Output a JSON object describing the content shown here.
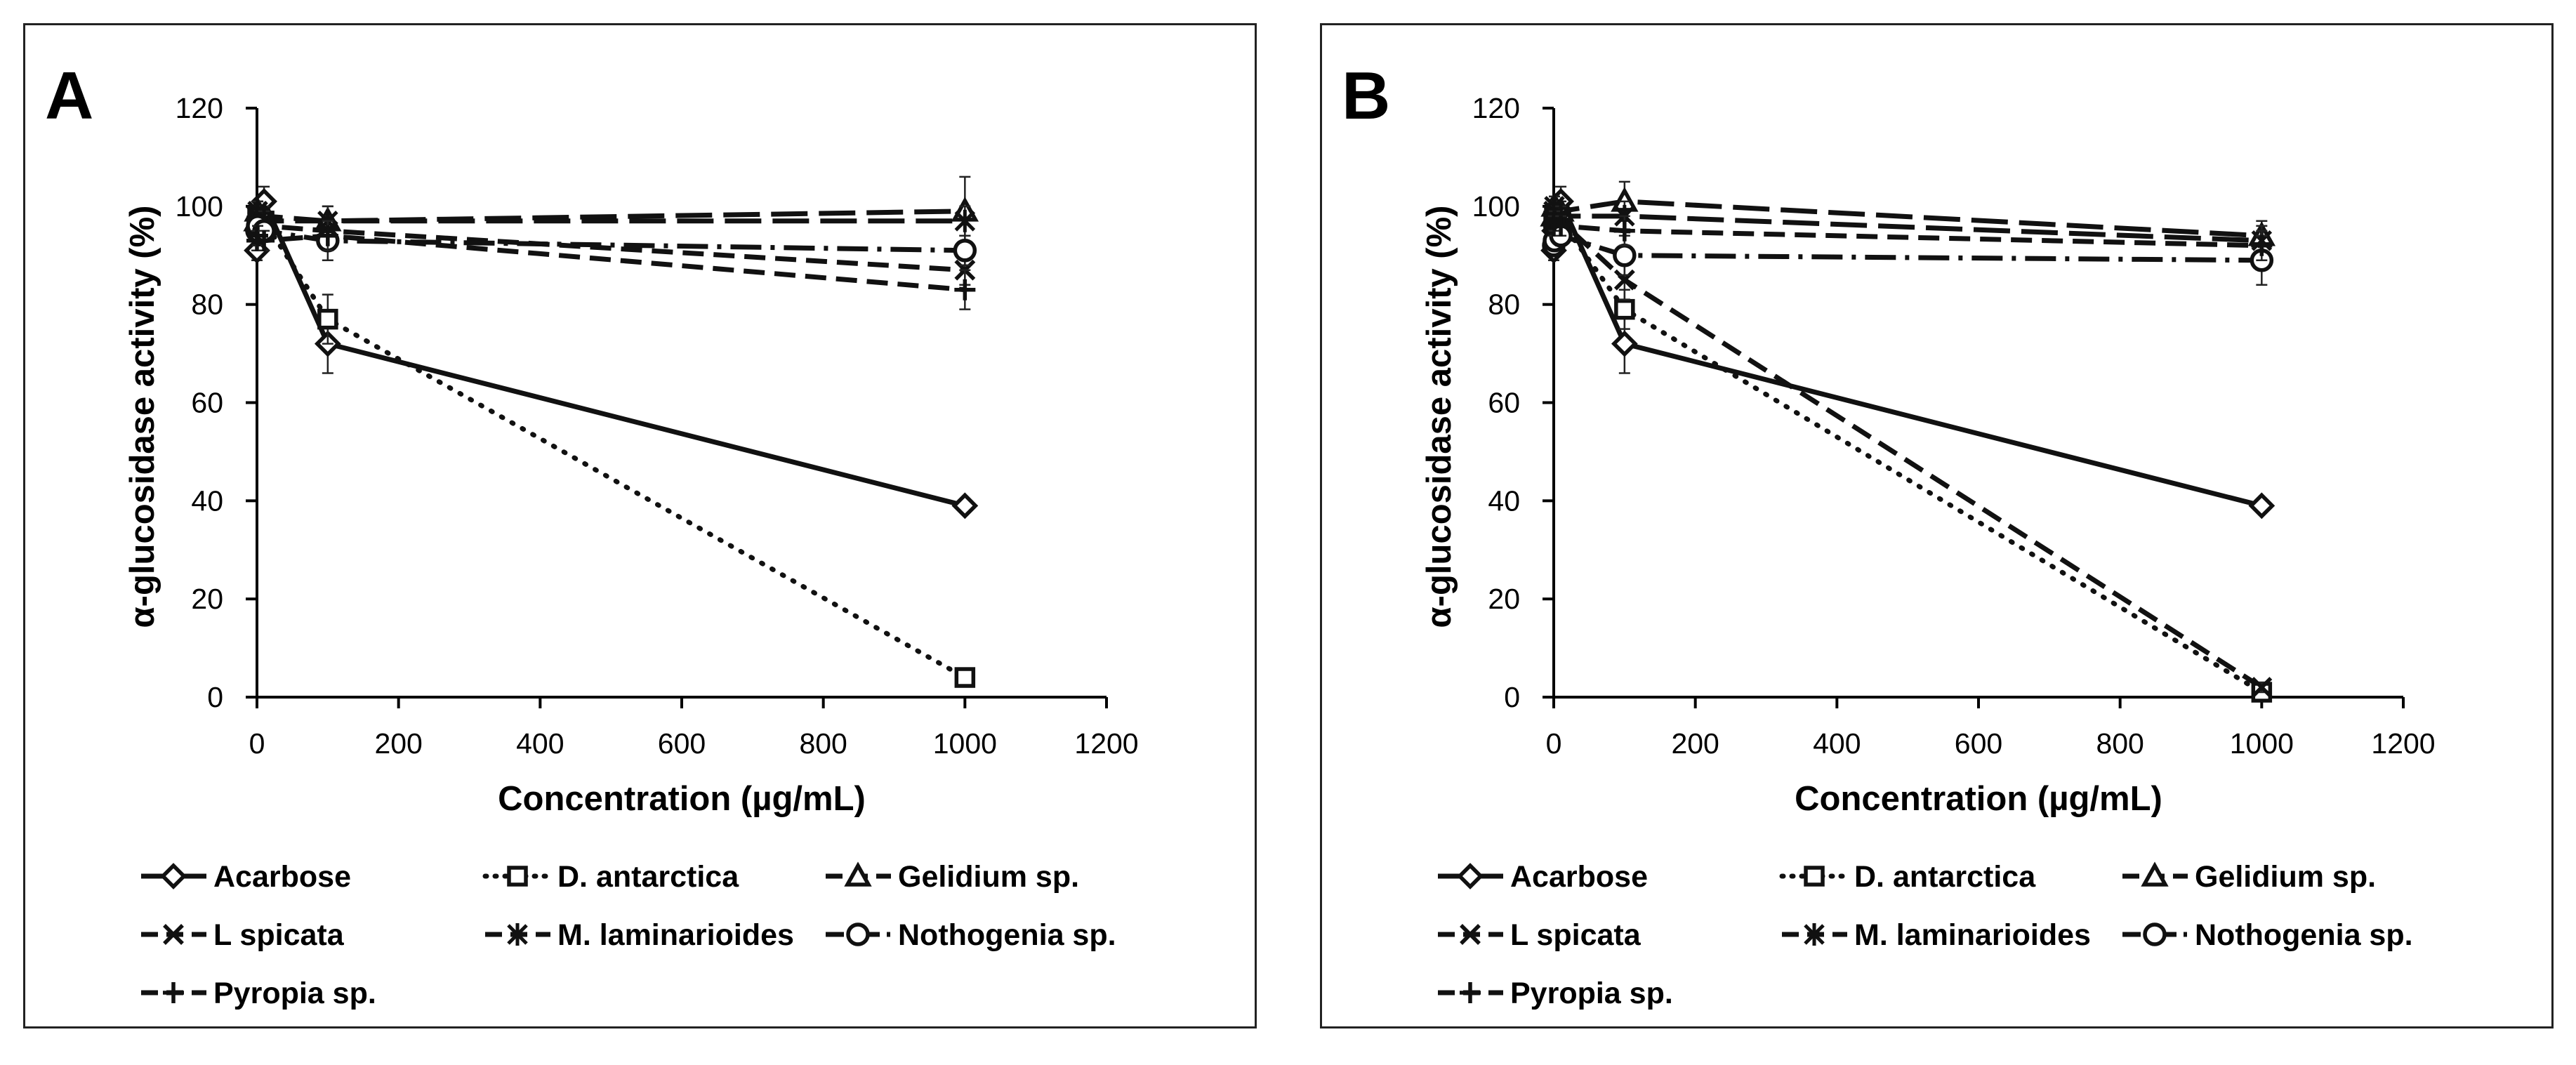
{
  "chart_data": [
    {
      "type": "line",
      "panel_label": "A",
      "xlabel": "Concentration (µg/mL)",
      "ylabel": "α-glucosidase activity (%)",
      "xlim": [
        0,
        1200
      ],
      "ylim": [
        0,
        120
      ],
      "xticks": [
        0,
        200,
        400,
        600,
        800,
        1000,
        1200
      ],
      "yticks": [
        0,
        20,
        40,
        60,
        80,
        100,
        120
      ],
      "grid": false,
      "legend_position": "bottom",
      "series": [
        {
          "name": "Acarbose",
          "marker": "diamond",
          "dash": "solid",
          "x": [
            0,
            1,
            10,
            100,
            1000
          ],
          "y": [
            91,
            95,
            101,
            72,
            39
          ],
          "err": [
            2,
            2,
            3,
            6,
            1
          ]
        },
        {
          "name": "D. antarctica",
          "marker": "square",
          "dash": "dot",
          "x": [
            0,
            1,
            10,
            100,
            1000
          ],
          "y": [
            96,
            98,
            97,
            77,
            4
          ],
          "err": [
            2,
            2,
            2,
            5,
            1
          ]
        },
        {
          "name": "Gelidium sp.",
          "marker": "triangle",
          "dash": "longdash",
          "x": [
            0,
            1,
            10,
            100,
            1000
          ],
          "y": [
            97,
            99,
            98,
            97,
            99
          ],
          "err": [
            2,
            2,
            2,
            3,
            7
          ]
        },
        {
          "name": "L spicata",
          "marker": "x",
          "dash": "dash",
          "x": [
            0,
            1,
            10,
            100,
            1000
          ],
          "y": [
            96,
            97,
            96,
            95,
            87
          ],
          "err": [
            2,
            2,
            2,
            3,
            3
          ]
        },
        {
          "name": "M. laminarioides",
          "marker": "star",
          "dash": "longdash",
          "x": [
            0,
            1,
            10,
            100,
            1000
          ],
          "y": [
            98,
            99,
            97,
            97,
            97
          ],
          "err": [
            2,
            2,
            2,
            3,
            3
          ]
        },
        {
          "name": "Nothogenia sp.",
          "marker": "circle",
          "dash": "dashdot",
          "x": [
            0,
            1,
            10,
            100,
            1000
          ],
          "y": [
            95,
            96,
            95,
            93,
            91
          ],
          "err": [
            2,
            2,
            2,
            4,
            3
          ]
        },
        {
          "name": "Pyropia sp.",
          "marker": "plus",
          "dash": "dash",
          "x": [
            0,
            1,
            10,
            100,
            1000
          ],
          "y": [
            93,
            94,
            93,
            94,
            83
          ],
          "err": [
            2,
            2,
            2,
            3,
            4
          ]
        }
      ]
    },
    {
      "type": "line",
      "panel_label": "B",
      "xlabel": "Concentration (µg/mL)",
      "ylabel": "α-glucosidase activity (%)",
      "xlim": [
        0,
        1200
      ],
      "ylim": [
        0,
        120
      ],
      "xticks": [
        0,
        200,
        400,
        600,
        800,
        1000,
        1200
      ],
      "yticks": [
        0,
        20,
        40,
        60,
        80,
        100,
        120
      ],
      "grid": false,
      "legend_position": "bottom",
      "series": [
        {
          "name": "Acarbose",
          "marker": "diamond",
          "dash": "solid",
          "x": [
            0,
            1,
            10,
            100,
            1000
          ],
          "y": [
            91,
            95,
            101,
            72,
            39
          ],
          "err": [
            2,
            2,
            3,
            6,
            1
          ]
        },
        {
          "name": "D. antarctica",
          "marker": "square",
          "dash": "dot",
          "x": [
            0,
            1,
            10,
            100,
            1000
          ],
          "y": [
            97,
            98,
            97,
            79,
            1
          ],
          "err": [
            2,
            2,
            2,
            4,
            1
          ]
        },
        {
          "name": "Gelidium sp.",
          "marker": "triangle",
          "dash": "longdash",
          "x": [
            0,
            1,
            10,
            100,
            1000
          ],
          "y": [
            98,
            100,
            99,
            101,
            94
          ],
          "err": [
            2,
            2,
            2,
            4,
            3
          ]
        },
        {
          "name": "L spicata",
          "marker": "x",
          "dash": "dash",
          "x": [
            0,
            1,
            10,
            100,
            1000
          ],
          "y": [
            97,
            98,
            97,
            85,
            2
          ],
          "err": [
            2,
            2,
            2,
            4,
            1
          ]
        },
        {
          "name": "M. laminarioides",
          "marker": "star",
          "dash": "longdash",
          "x": [
            0,
            1,
            10,
            100,
            1000
          ],
          "y": [
            99,
            100,
            98,
            98,
            93
          ],
          "err": [
            2,
            2,
            2,
            3,
            3
          ]
        },
        {
          "name": "Nothogenia sp.",
          "marker": "circle",
          "dash": "dashdot",
          "x": [
            0,
            1,
            10,
            100,
            1000
          ],
          "y": [
            92,
            93,
            94,
            90,
            89
          ],
          "err": [
            2,
            2,
            2,
            4,
            5
          ]
        },
        {
          "name": "Pyropia sp.",
          "marker": "plus",
          "dash": "dash",
          "x": [
            0,
            1,
            10,
            100,
            1000
          ],
          "y": [
            96,
            97,
            96,
            95,
            92
          ],
          "err": [
            2,
            2,
            2,
            3,
            3
          ]
        }
      ]
    }
  ]
}
